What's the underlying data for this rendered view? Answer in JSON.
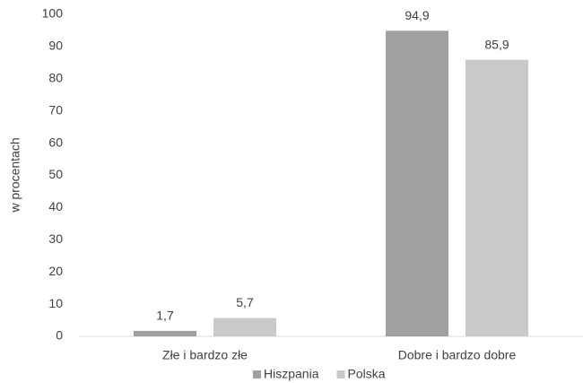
{
  "chart_data": {
    "type": "bar",
    "y_axis_label": "w procentach",
    "categories": [
      "Złe i bardzo złe",
      "Dobre i bardzo dobre"
    ],
    "series": [
      {
        "name": "Hiszpania",
        "color": "#a0a0a2",
        "values": [
          1.7,
          94.9
        ],
        "value_labels": [
          "1,7",
          "94,9"
        ]
      },
      {
        "name": "Polska",
        "color": "#c9c9c9",
        "values": [
          5.7,
          85.9
        ],
        "value_labels": [
          "5,7",
          "85,9"
        ]
      }
    ],
    "ylim": [
      0,
      100
    ],
    "yticks": [
      0,
      10,
      20,
      30,
      40,
      50,
      60,
      70,
      80,
      90,
      100
    ],
    "grid": false,
    "legend": "bottom"
  }
}
